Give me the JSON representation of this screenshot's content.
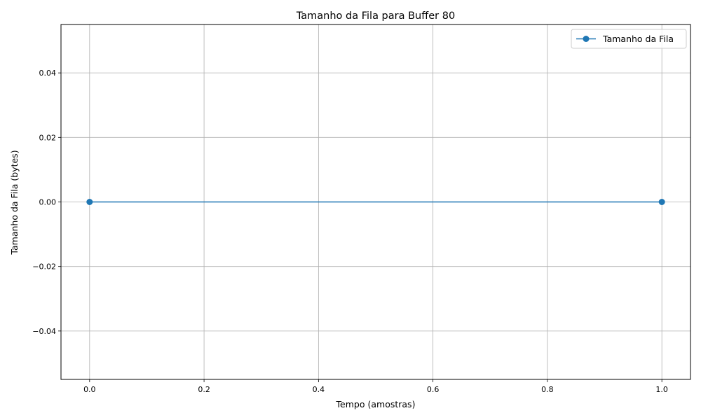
{
  "chart_data": {
    "type": "line",
    "title": "Tamanho da Fila para Buffer 80",
    "xlabel": "Tempo (amostras)",
    "ylabel": "Tamanho da Fila (bytes)",
    "xlim": [
      -0.05,
      1.05
    ],
    "ylim": [
      -0.055,
      0.055
    ],
    "x_ticks": [
      0.0,
      0.2,
      0.4,
      0.6,
      0.8,
      1.0
    ],
    "x_tick_labels": [
      "0.0",
      "0.2",
      "0.4",
      "0.6",
      "0.8",
      "1.0"
    ],
    "y_ticks": [
      -0.04,
      -0.02,
      0.0,
      0.02,
      0.04
    ],
    "y_tick_labels": [
      "−0.04",
      "−0.02",
      "0.00",
      "0.02",
      "0.04"
    ],
    "grid": true,
    "legend_position": "top-right",
    "series": [
      {
        "name": "Tamanho da Fila",
        "color": "#1f77b4",
        "marker": "circle",
        "x": [
          0,
          1
        ],
        "y": [
          0,
          0
        ]
      }
    ]
  }
}
